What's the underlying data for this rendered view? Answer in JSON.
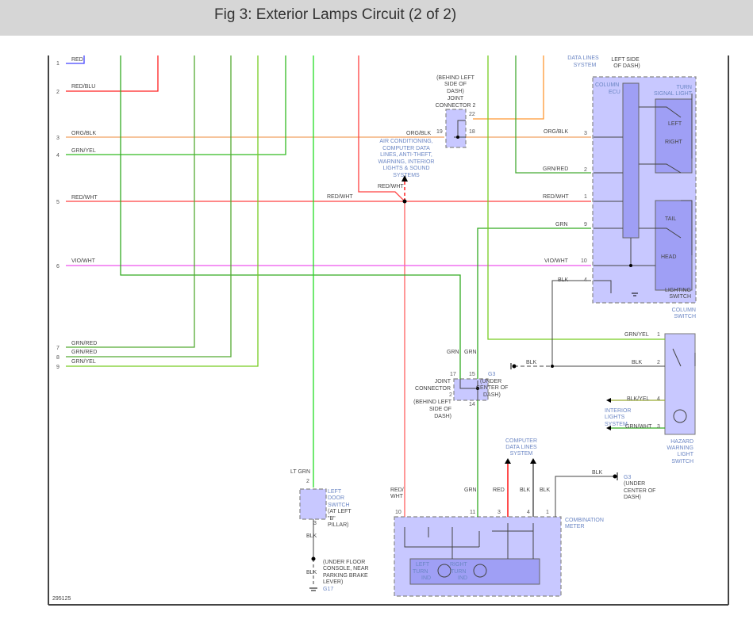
{
  "header": {
    "title": "Fig 3: Exterior Lamps Circuit (2 of 2)"
  },
  "colors": {
    "red": "#ff4040",
    "green": "#33bb22",
    "orange": "#ff9933",
    "magenta": "#ee55ee",
    "black": "#444444",
    "box": "#c8c8ff"
  },
  "left_connector": {
    "pins": [
      "1",
      "2",
      "3",
      "4",
      "5",
      "6",
      "7",
      "8",
      "9"
    ],
    "wire_labels": [
      "RED",
      "RED/BLU",
      "ORG/BLK",
      "GRN/YEL",
      "RED/WHT",
      "VIO/WHT",
      "GRN/RED",
      "GRN/RED",
      "GRN/YEL"
    ]
  },
  "splice": {
    "label_left": "RED/WHT",
    "label_top": "RED/WHT",
    "systems_note": [
      "AIR CONDITIONING,",
      "COMPUTER DATA",
      "LINES, ANTI-THEFT,",
      "WARNING, INTERIOR",
      "LIGHTS & SOUND",
      "SYSTEMS"
    ]
  },
  "joint_connector_2": {
    "lines": [
      "(BEHIND LEFT",
      "SIDE OF",
      "DASH)",
      "JOINT",
      "CONNECTOR 2"
    ],
    "pins": [
      "22",
      "19",
      "18"
    ],
    "left_label": "ORG/BLK"
  },
  "column_switch": {
    "data_lines": [
      "DATA LINES",
      "SYSTEM"
    ],
    "location": [
      "LEFT SIDE",
      "OF DASH)"
    ],
    "ecu": [
      "COLUMN",
      "ECU"
    ],
    "turn_signal": [
      "TURN",
      "SIGNAL LIGHT"
    ],
    "turn_left": "LEFT",
    "turn_right": "RIGHT",
    "tail": "TAIL",
    "head": "HEAD",
    "lighting_switch": [
      "LIGHTING",
      "SWITCH"
    ],
    "name": [
      "COLUMN",
      "SWITCH"
    ],
    "pins": [
      {
        "pin": "3",
        "wire": "ORG/BLK"
      },
      {
        "pin": "2",
        "wire": "GRN/RED"
      },
      {
        "pin": "1",
        "wire": "RED/WHT"
      },
      {
        "pin": "9",
        "wire": "GRN"
      },
      {
        "pin": "10",
        "wire": "VIO/WHT"
      },
      {
        "pin": "4",
        "wire": "BLK"
      }
    ]
  },
  "hazard_switch": {
    "name": [
      "HAZARD",
      "WARNING",
      "LIGHT",
      "SWITCH"
    ],
    "pins": [
      {
        "pin": "1",
        "wire": "GRN/YEL"
      },
      {
        "pin": "2",
        "wire": "BLK"
      },
      {
        "pin": "4",
        "wire": "BLK/YEL"
      },
      {
        "pin": "3",
        "wire": "GRN/WHT"
      }
    ],
    "interior": [
      "INTERIOR",
      "LIGHTS",
      "SYSTEM"
    ]
  },
  "ground_g3_upper": {
    "wire": "BLK",
    "lines": [
      "G3",
      "(UNDER",
      "CENTER OF",
      "DASH)"
    ]
  },
  "joint_connector": {
    "wires": [
      "GRN",
      "GRN"
    ],
    "pins": [
      "17",
      "15",
      "2",
      "14"
    ],
    "lines": [
      "JOINT",
      "CONNECTOR",
      "(BEHIND LEFT",
      "SIDE OF",
      "DASH)"
    ]
  },
  "left_door_switch": {
    "wire_top": "LT GRN",
    "pins": [
      "2",
      "3"
    ],
    "lines": [
      "LEFT",
      "DOOR",
      "SWITCH",
      "(AT LEFT",
      "\"B\"",
      "PILLAR)"
    ],
    "wire_bottom": "BLK",
    "wire_bottom2": "BLK",
    "ground_lines": [
      "(UNDER FLOOR",
      "CONSOLE, NEAR",
      "PARKING BRAKE",
      "LEVER)"
    ],
    "ground": "G17"
  },
  "combination_meter": {
    "name": [
      "COMBINATION",
      "METER"
    ],
    "data_lines": [
      "COMPUTER",
      "DATA LINES",
      "SYSTEM"
    ],
    "pins": [
      {
        "pin": "10",
        "wire": [
          "RED/",
          "WHT"
        ]
      },
      {
        "pin": "11",
        "wire": [
          "GRN"
        ]
      },
      {
        "pin": "3",
        "wire": [
          "RED"
        ]
      },
      {
        "pin": "4",
        "wire": [
          "BLK"
        ]
      },
      {
        "pin": "1",
        "wire": [
          "BLK"
        ]
      }
    ],
    "left_ind": [
      "LEFT",
      "TURN",
      "IND"
    ],
    "right_ind": [
      "RIGHT",
      "TURN",
      "IND"
    ]
  },
  "ground_g3_lower": {
    "wire": "BLK",
    "lines": [
      "G3",
      "(UNDER",
      "CENTER OF",
      "DASH)"
    ]
  },
  "figure_id": "295125"
}
